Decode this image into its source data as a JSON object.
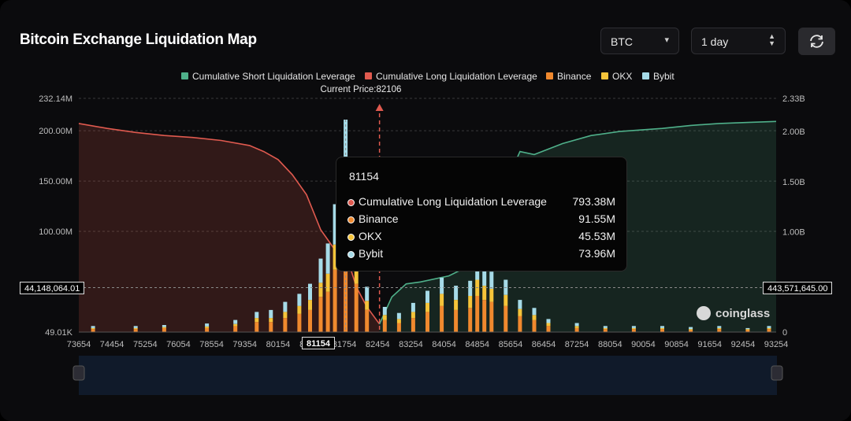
{
  "title": "Bitcoin Exchange Liquidation Map",
  "controls": {
    "coin_select": "BTC",
    "range_select": "1 day"
  },
  "icons": {
    "coin_chevron": "chevron-down-icon",
    "range_stepper": "up-down-stepper-icon",
    "refresh": "refresh-icon",
    "watermark": "coinglass-logo-icon"
  },
  "watermark_text": "coinglass",
  "current_price_label": "Current Price:82106",
  "crosshair": {
    "left_value": "44,148,064.01",
    "right_value": "443,571,645.00",
    "x_value": "81154"
  },
  "tooltip": {
    "title": "81154",
    "rows": [
      {
        "name": "Cumulative Long Liquidation Leverage",
        "value": "793.38M",
        "color": "#e05a4f"
      },
      {
        "name": "Binance",
        "value": "91.55M",
        "color": "#f0892e"
      },
      {
        "name": "OKX",
        "value": "45.53M",
        "color": "#f5c43a"
      },
      {
        "name": "Bybit",
        "value": "73.96M",
        "color": "#a6dbe8"
      }
    ]
  },
  "colors": {
    "short": "#4fb08a",
    "long": "#e05a4f",
    "binance": "#f0892e",
    "okx": "#f5c43a",
    "bybit": "#a6dbe8"
  },
  "chart_data": {
    "type": "bar",
    "title": "Bitcoin Exchange Liquidation Map",
    "current_price": 82106,
    "x_ticks": [
      73654,
      74454,
      75254,
      76054,
      78554,
      79354,
      80154,
      81154,
      81754,
      82454,
      83254,
      84054,
      84854,
      85654,
      86454,
      87254,
      88054,
      90054,
      90854,
      91654,
      92454,
      93254
    ],
    "x_range": [
      73654,
      93254
    ],
    "left_axis": {
      "ticks": [
        "49.01K",
        "100.00M",
        "150.00M",
        "200.00M",
        "232.14M"
      ],
      "ylim": [
        0,
        232140000
      ]
    },
    "right_axis": {
      "ticks": [
        "0",
        "1.00B",
        "1.50B",
        "2.00B",
        "2.33B"
      ],
      "ylim": [
        0,
        2330000000
      ]
    },
    "legend": [
      "Cumulative Short Liquidation Leverage",
      "Cumulative Long Liquidation Leverage",
      "Binance",
      "OKX",
      "Bybit"
    ],
    "legend_position": "top-center",
    "grid": true,
    "series": [
      {
        "name": "Cumulative Long Liquidation Leverage",
        "axis": "right",
        "x": [
          73654,
          74454,
          75254,
          76054,
          76854,
          77654,
          78454,
          78854,
          79254,
          79654,
          80054,
          80454,
          80854,
          81154,
          81454,
          81754,
          82106
        ],
        "values": [
          2080000000,
          2030000000,
          1990000000,
          1960000000,
          1940000000,
          1910000000,
          1860000000,
          1800000000,
          1720000000,
          1570000000,
          1370000000,
          1020000000,
          820000000,
          793380000,
          450000000,
          250000000,
          80000000
        ]
      },
      {
        "name": "Cumulative Short Liquidation Leverage",
        "axis": "right",
        "x": [
          82106,
          82454,
          82854,
          83254,
          84054,
          84854,
          85254,
          85654,
          86054,
          86454,
          87254,
          88054,
          88854,
          90054,
          90854,
          91654,
          92454,
          93254
        ],
        "values": [
          80000000,
          350000000,
          480000000,
          500000000,
          560000000,
          700000000,
          1050000000,
          1480000000,
          1800000000,
          1770000000,
          1880000000,
          1960000000,
          2000000000,
          2030000000,
          2060000000,
          2080000000,
          2090000000,
          2100000000
        ]
      },
      {
        "name": "Binance",
        "x": [
          74054,
          75254,
          76054,
          77254,
          78054,
          78654,
          79054,
          79454,
          79854,
          80154,
          80454,
          80654,
          80854,
          81154,
          81454,
          81754,
          82254,
          82654,
          83054,
          83454,
          83854,
          84254,
          84654,
          84854,
          85054,
          85254,
          85654,
          86054,
          86454,
          86854,
          87654,
          88454,
          89254,
          90054,
          90854,
          91654,
          92454,
          93054
        ],
        "values": [
          3000000,
          3000000,
          4000000,
          4000000,
          6000000,
          10000000,
          10000000,
          14000000,
          18000000,
          22000000,
          35000000,
          40000000,
          62000000,
          91550000,
          48000000,
          22000000,
          12000000,
          9000000,
          14000000,
          20000000,
          26000000,
          22000000,
          24000000,
          36000000,
          32000000,
          30000000,
          26000000,
          16000000,
          12000000,
          6000000,
          4000000,
          3000000,
          3000000,
          3000000,
          2000000,
          3000000,
          2000000,
          3000000
        ]
      },
      {
        "name": "OKX",
        "x": [
          74054,
          75254,
          76054,
          77254,
          78054,
          78654,
          79054,
          79454,
          79854,
          80154,
          80454,
          80654,
          80854,
          81154,
          81454,
          81754,
          82254,
          82654,
          83054,
          83454,
          83854,
          84254,
          84654,
          84854,
          85054,
          85254,
          85654,
          86054,
          86454,
          86854,
          87654,
          88454,
          89254,
          90054,
          90854,
          91654,
          92454,
          93054
        ],
        "values": [
          1000000,
          1000000,
          1000000,
          1500000,
          2000000,
          4000000,
          4000000,
          6000000,
          8000000,
          10000000,
          14000000,
          18000000,
          25000000,
          45530000,
          20000000,
          9000000,
          5000000,
          4000000,
          6000000,
          9000000,
          12000000,
          10000000,
          12000000,
          16000000,
          14000000,
          13000000,
          11000000,
          7000000,
          5000000,
          3000000,
          2000000,
          1000000,
          1000000,
          1000000,
          1000000,
          1000000,
          1000000,
          1000000
        ]
      },
      {
        "name": "Bybit",
        "x": [
          74054,
          75254,
          76054,
          77254,
          78054,
          78654,
          79054,
          79454,
          79854,
          80154,
          80454,
          80654,
          80854,
          81154,
          81454,
          81754,
          82254,
          82654,
          83054,
          83454,
          83854,
          84254,
          84654,
          84854,
          85054,
          85254,
          85654,
          86054,
          86454,
          86854,
          87654,
          88454,
          89254,
          90054,
          90854,
          91654,
          92454,
          93054
        ],
        "values": [
          2000000,
          2000000,
          2000000,
          3000000,
          4000000,
          6000000,
          8000000,
          10000000,
          12000000,
          16000000,
          24000000,
          30000000,
          40000000,
          73960000,
          35000000,
          14000000,
          8000000,
          6000000,
          9000000,
          12000000,
          16000000,
          14000000,
          15000000,
          20000000,
          18000000,
          17000000,
          15000000,
          9000000,
          7000000,
          4000000,
          3000000,
          2000000,
          2000000,
          2000000,
          2000000,
          2000000,
          1000000,
          2000000
        ]
      }
    ]
  }
}
